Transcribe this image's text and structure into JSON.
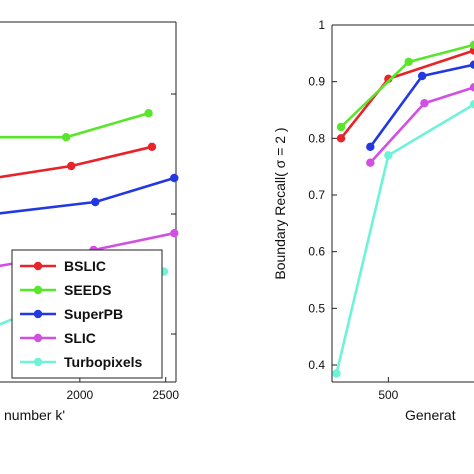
{
  "chart_data": [
    {
      "type": "line",
      "title": "",
      "xlabel": "number k'",
      "ylabel": "",
      "xlim": [
        1500,
        2560
      ],
      "ylim": [
        0.78,
        0.93
      ],
      "x_ticks": [
        2000,
        2500
      ],
      "x_tick_labels": [
        "2000",
        "2500"
      ],
      "y_ticks": [],
      "grid": false,
      "legend": {
        "placement": "lower-right",
        "entries": [
          "BSLIC",
          "SEEDS",
          "SuperPB",
          "SLIC",
          "Turbopixels"
        ]
      },
      "series": [
        {
          "name": "BSLIC",
          "color": "#e8232a",
          "x": [
            1500,
            1950,
            2420
          ],
          "y": [
            0.865,
            0.87,
            0.878
          ]
        },
        {
          "name": "SEEDS",
          "color": "#57e62a",
          "x": [
            1500,
            1920,
            2400
          ],
          "y": [
            0.882,
            0.882,
            0.892
          ]
        },
        {
          "name": "SuperPB",
          "color": "#2238e0",
          "x": [
            1500,
            2090,
            2550
          ],
          "y": [
            0.85,
            0.855,
            0.865
          ]
        },
        {
          "name": "SLIC",
          "color": "#d24fe4",
          "x": [
            1500,
            2080,
            2550
          ],
          "y": [
            0.828,
            0.835,
            0.842
          ]
        },
        {
          "name": "Turbopixels",
          "color": "#6ef2d8",
          "x": [
            1500,
            2010,
            2490
          ],
          "y": [
            0.803,
            0.818,
            0.826
          ]
        }
      ]
    },
    {
      "type": "line",
      "title": "",
      "xlabel": "Generat",
      "ylabel": "Boundary Recall( σ = 2 )",
      "xlim": [
        250,
        880
      ],
      "ylim": [
        0.37,
        1.0
      ],
      "x_ticks": [
        500
      ],
      "x_tick_labels": [
        "500"
      ],
      "y_ticks": [
        0.4,
        0.5,
        0.6,
        0.7,
        0.8,
        0.9,
        1.0
      ],
      "y_tick_labels": [
        "0.4",
        "0.5",
        "0.6",
        "0.7",
        "0.8",
        "0.9",
        "1"
      ],
      "grid": false,
      "series": [
        {
          "name": "BSLIC",
          "color": "#e8232a",
          "x": [
            290,
            500,
            880
          ],
          "y": [
            0.8,
            0.905,
            0.955
          ]
        },
        {
          "name": "SEEDS",
          "color": "#57e62a",
          "x": [
            290,
            590,
            880
          ],
          "y": [
            0.82,
            0.935,
            0.965
          ]
        },
        {
          "name": "SuperPB",
          "color": "#2238e0",
          "x": [
            420,
            650,
            880
          ],
          "y": [
            0.785,
            0.91,
            0.93
          ]
        },
        {
          "name": "SLIC",
          "color": "#d24fe4",
          "x": [
            420,
            660,
            880
          ],
          "y": [
            0.757,
            0.862,
            0.89
          ]
        },
        {
          "name": "Turbopixels",
          "color": "#6ef2d8",
          "x": [
            270,
            500,
            880
          ],
          "y": [
            0.385,
            0.77,
            0.86
          ]
        }
      ]
    }
  ]
}
